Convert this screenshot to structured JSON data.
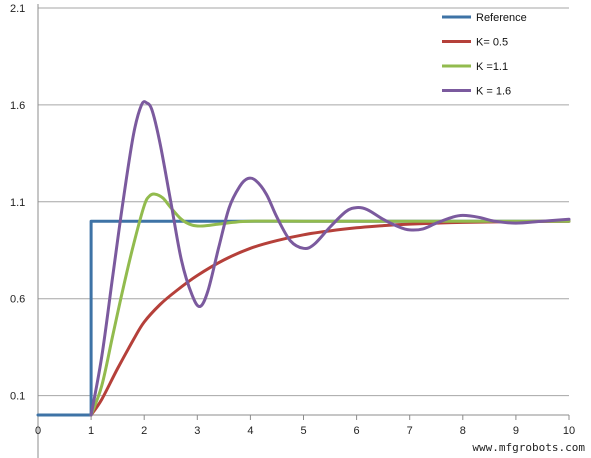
{
  "chart_data": {
    "type": "line",
    "title": "",
    "xlabel": "",
    "ylabel": "",
    "xlim": [
      0,
      10
    ],
    "ylim": [
      0,
      2.1
    ],
    "x_ticks": [
      0,
      1,
      2,
      3,
      4,
      5,
      6,
      7,
      8,
      9,
      10
    ],
    "y_ticks": [
      0.1,
      0.6,
      1.1,
      1.6,
      2.1
    ],
    "y_tick_labels": [
      "0.1",
      "0.6",
      "1.1",
      "1.6",
      "2.1"
    ],
    "grid": "horizontal",
    "legend_position": "top-right",
    "series": [
      {
        "name": "Reference",
        "color": "#3e73a6",
        "x": [
          0,
          1,
          1,
          10
        ],
        "y": [
          0,
          0,
          1,
          1
        ]
      },
      {
        "name": "K= 0.5",
        "color": "#b5403a",
        "x": [
          1.0,
          1.2,
          1.5,
          1.8,
          2.0,
          2.3,
          2.6,
          3.0,
          3.5,
          4.0,
          4.5,
          5.0,
          5.5,
          6.0,
          6.5,
          7.0,
          7.5,
          8.0,
          9.0,
          10.0
        ],
        "y": [
          0.0,
          0.08,
          0.24,
          0.39,
          0.48,
          0.57,
          0.64,
          0.72,
          0.8,
          0.86,
          0.9,
          0.93,
          0.95,
          0.966,
          0.977,
          0.985,
          0.99,
          0.994,
          0.998,
          1.0
        ]
      },
      {
        "name": "K =1.1",
        "color": "#92bb4e",
        "x": [
          1.0,
          1.2,
          1.4,
          1.6,
          1.8,
          2.0,
          2.1,
          2.2,
          2.35,
          2.5,
          2.7,
          2.9,
          3.1,
          3.4,
          3.7,
          4.0,
          5.0,
          6.0,
          8.0,
          10.0
        ],
        "y": [
          0.0,
          0.15,
          0.4,
          0.65,
          0.88,
          1.08,
          1.13,
          1.14,
          1.12,
          1.07,
          1.01,
          0.98,
          0.975,
          0.985,
          0.995,
          1.0,
          1.0,
          1.0,
          1.0,
          1.0
        ]
      },
      {
        "name": "K = 1.6",
        "color": "#7b5a9e",
        "x": [
          1.0,
          1.2,
          1.4,
          1.6,
          1.8,
          1.95,
          2.05,
          2.15,
          2.3,
          2.5,
          2.7,
          2.9,
          3.05,
          3.2,
          3.4,
          3.6,
          3.8,
          3.95,
          4.1,
          4.3,
          4.5,
          4.75,
          5.0,
          5.2,
          5.5,
          5.8,
          6.0,
          6.2,
          6.5,
          6.8,
          7.0,
          7.25,
          7.5,
          7.8,
          8.0,
          8.3,
          8.6,
          9.0,
          9.5,
          10.0
        ],
        "y": [
          0.0,
          0.3,
          0.7,
          1.1,
          1.45,
          1.6,
          1.61,
          1.57,
          1.4,
          1.1,
          0.8,
          0.62,
          0.56,
          0.64,
          0.86,
          1.07,
          1.18,
          1.22,
          1.21,
          1.14,
          1.02,
          0.9,
          0.86,
          0.88,
          0.97,
          1.05,
          1.07,
          1.06,
          1.01,
          0.97,
          0.955,
          0.96,
          0.99,
          1.02,
          1.03,
          1.02,
          1.0,
          0.99,
          1.0,
          1.01
        ]
      }
    ]
  },
  "watermark": "www.mfgrobots.com"
}
